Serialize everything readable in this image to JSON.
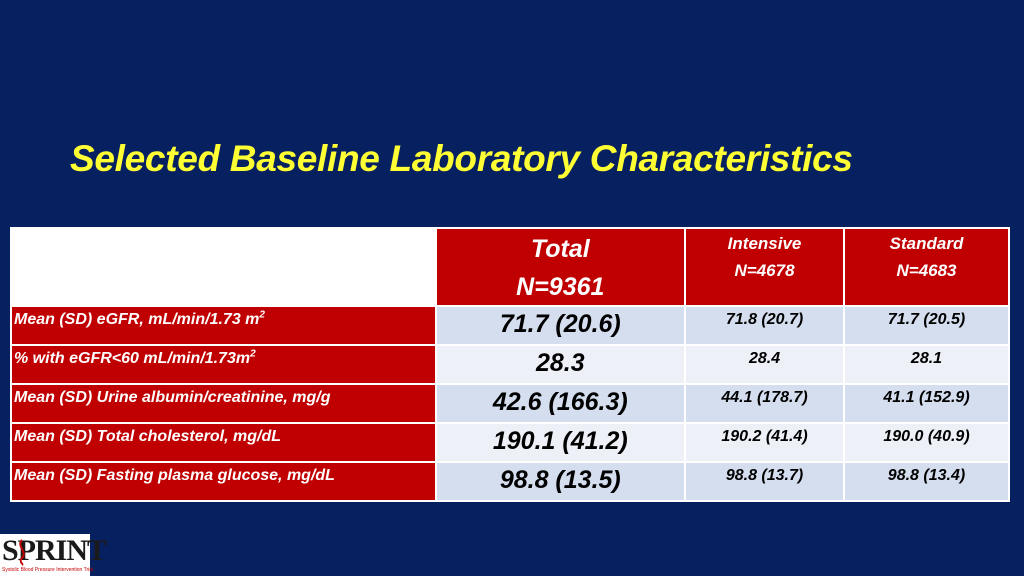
{
  "slide": {
    "title": "Selected Baseline Laboratory Characteristics",
    "colors": {
      "background": "#062060",
      "title": "#FFFF33",
      "header": "#C00000",
      "row_odd": "#D5DEEE",
      "row_even": "#EDF1F7"
    }
  },
  "table": {
    "headers": {
      "total_line1": "Total",
      "total_line2": "N=9361",
      "intensive_line1": "Intensive",
      "intensive_line2": "N=4678",
      "standard_line1": "Standard",
      "standard_line2": "N=4683"
    },
    "rows": [
      {
        "label": "Mean (SD) eGFR, mL/min/1.73 m",
        "label_sup": "2",
        "total": "71.7 (20.6)",
        "intensive": "71.8 (20.7)",
        "standard": "71.7 (20.5)"
      },
      {
        "label": "% with eGFR<60 mL/min/1.73m",
        "label_sup": "2",
        "total": "28.3",
        "intensive": "28.4",
        "standard": "28.1"
      },
      {
        "label": "Mean (SD) Urine albumin/creatinine, mg/g",
        "label_sup": "",
        "total": "42.6 (166.3)",
        "intensive": "44.1 (178.7)",
        "standard": "41.1 (152.9)"
      },
      {
        "label": "Mean (SD) Total cholesterol, mg/dL",
        "label_sup": "",
        "total": "190.1 (41.2)",
        "intensive": "190.2 (41.4)",
        "standard": "190.0 (40.9)"
      },
      {
        "label": "Mean (SD) Fasting plasma glucose, mg/dL",
        "label_sup": "",
        "total": "98.8 (13.5)",
        "intensive": "98.8 (13.7)",
        "standard": "98.8 (13.4)"
      }
    ]
  },
  "logo": {
    "word": "SPRINT",
    "tagline": "Systolic Blood Pressure Intervention Trial",
    "icon": "sprint-swirl-icon"
  }
}
